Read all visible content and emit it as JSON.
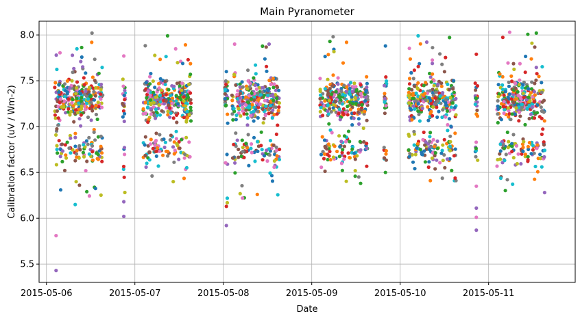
{
  "chart_data": {
    "type": "scatter",
    "title": "Main Pyranometer",
    "xlabel": "Date",
    "ylabel": "Calibration factor (uV / Wm-2)",
    "x_axis_kind": "date",
    "xlim": [
      "2015-05-05T22:00",
      "2015-05-11T23:30"
    ],
    "ylim": [
      5.3,
      8.15
    ],
    "x_ticks": [
      "2015-05-06",
      "2015-05-07",
      "2015-05-08",
      "2015-05-09",
      "2015-05-10",
      "2015-05-11"
    ],
    "y_ticks": [
      5.5,
      6.0,
      6.5,
      7.0,
      7.5,
      8.0
    ],
    "grid": true,
    "legend": "none",
    "marker": "filled circle",
    "colors": [
      "#1f77b4",
      "#ff7f0e",
      "#2ca02c",
      "#d62728",
      "#9467bd",
      "#8c564b",
      "#e377c2",
      "#7f7f7f",
      "#bcbd22",
      "#17becf"
    ],
    "sessions": [
      {
        "start": "2015-05-06T02:15",
        "end": "2015-05-06T15:15",
        "low": 6.15,
        "high": 8.02,
        "outliers_low": [
          5.43,
          5.81
        ]
      },
      {
        "start": "2015-05-06T20:50",
        "end": "2015-05-06T21:10",
        "low": 6.02,
        "high": 7.77,
        "outliers_low": [
          6.18
        ]
      },
      {
        "start": "2015-05-07T02:15",
        "end": "2015-05-07T15:15",
        "low": 6.4,
        "high": 7.99,
        "outliers_low": []
      },
      {
        "start": "2015-05-08T00:40",
        "end": "2015-05-08T01:00",
        "low": 6.13,
        "high": 7.6,
        "outliers_low": [
          5.92
        ]
      },
      {
        "start": "2015-05-08T02:15",
        "end": "2015-05-08T15:15",
        "low": 6.22,
        "high": 7.9,
        "outliers_low": []
      },
      {
        "start": "2015-05-09T02:15",
        "end": "2015-05-09T15:15",
        "low": 6.38,
        "high": 7.98,
        "outliers_low": []
      },
      {
        "start": "2015-05-09T19:50",
        "end": "2015-05-09T20:10",
        "low": 6.5,
        "high": 7.88,
        "outliers_low": []
      },
      {
        "start": "2015-05-10T02:15",
        "end": "2015-05-10T15:15",
        "low": 6.41,
        "high": 7.99,
        "outliers_low": []
      },
      {
        "start": "2015-05-10T20:30",
        "end": "2015-05-10T20:50",
        "low": 6.35,
        "high": 7.79,
        "outliers_low": [
          5.87,
          6.01,
          6.11
        ]
      },
      {
        "start": "2015-05-11T02:15",
        "end": "2015-05-11T15:15",
        "low": 6.28,
        "high": 8.03,
        "outliers_low": []
      }
    ]
  }
}
